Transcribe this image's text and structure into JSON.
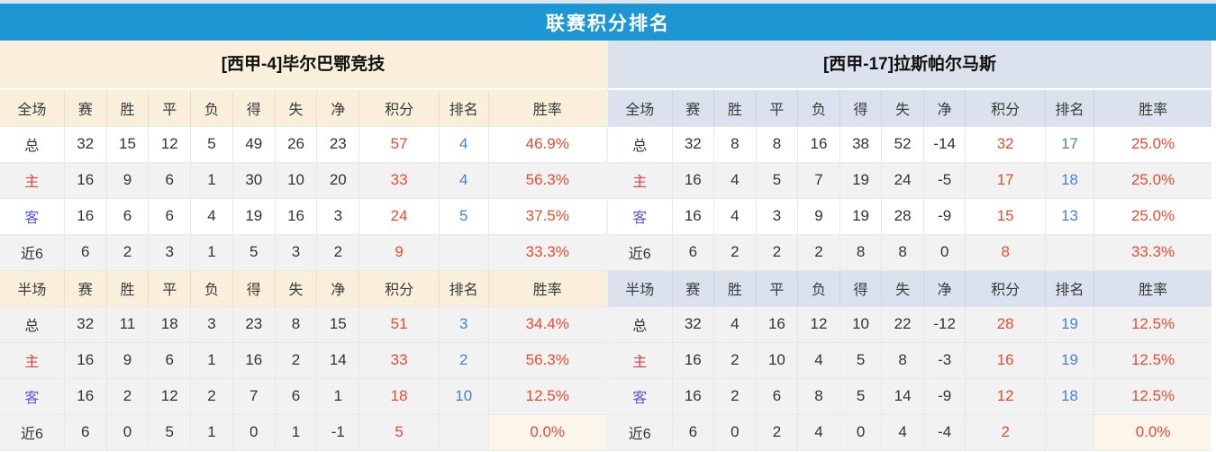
{
  "header": {
    "title": "联赛积分排名"
  },
  "colors": {
    "bar_blue": "#1d97d4",
    "left_accent": "#f9efdb",
    "right_accent": "#dbe2ee",
    "points_red": "#e84c30",
    "rank_blue": "#4183d7",
    "home_label_red": "#dc4040",
    "away_label_blue": "#5a5ad9"
  },
  "columns": [
    "赛",
    "胜",
    "平",
    "负",
    "得",
    "失",
    "净",
    "积分",
    "排名",
    "胜率"
  ],
  "teams": [
    {
      "title": "[西甲-4]毕尔巴鄂竞技",
      "sections": [
        {
          "label": "全场",
          "rows": [
            {
              "label": "总",
              "type": "total",
              "stats": [
                "32",
                "15",
                "12",
                "5",
                "49",
                "26",
                "23"
              ],
              "points": "57",
              "rank": "4",
              "rate": "46.9%"
            },
            {
              "label": "主",
              "type": "home",
              "stats": [
                "16",
                "9",
                "6",
                "1",
                "30",
                "10",
                "20"
              ],
              "points": "33",
              "rank": "4",
              "rate": "56.3%"
            },
            {
              "label": "客",
              "type": "away",
              "stats": [
                "16",
                "6",
                "6",
                "4",
                "19",
                "16",
                "3"
              ],
              "points": "24",
              "rank": "5",
              "rate": "37.5%"
            },
            {
              "label": "近6",
              "type": "last6",
              "stats": [
                "6",
                "2",
                "3",
                "1",
                "5",
                "3",
                "2"
              ],
              "points": "9",
              "rank": "",
              "rate": "33.3%"
            }
          ]
        },
        {
          "label": "半场",
          "rows": [
            {
              "label": "总",
              "type": "total",
              "stats": [
                "32",
                "11",
                "18",
                "3",
                "23",
                "8",
                "15"
              ],
              "points": "51",
              "rank": "3",
              "rate": "34.4%"
            },
            {
              "label": "主",
              "type": "home",
              "stats": [
                "16",
                "9",
                "6",
                "1",
                "16",
                "2",
                "14"
              ],
              "points": "33",
              "rank": "2",
              "rate": "56.3%"
            },
            {
              "label": "客",
              "type": "away",
              "stats": [
                "16",
                "2",
                "12",
                "2",
                "7",
                "6",
                "1"
              ],
              "points": "18",
              "rank": "10",
              "rate": "12.5%"
            },
            {
              "label": "近6",
              "type": "last6",
              "stats": [
                "6",
                "0",
                "5",
                "1",
                "0",
                "1",
                "-1"
              ],
              "points": "5",
              "rank": "",
              "rate": "0.0%"
            }
          ]
        }
      ]
    },
    {
      "title": "[西甲-17]拉斯帕尔马斯",
      "sections": [
        {
          "label": "全场",
          "rows": [
            {
              "label": "总",
              "type": "total",
              "stats": [
                "32",
                "8",
                "8",
                "16",
                "38",
                "52",
                "-14"
              ],
              "points": "32",
              "rank": "17",
              "rate": "25.0%"
            },
            {
              "label": "主",
              "type": "home",
              "stats": [
                "16",
                "4",
                "5",
                "7",
                "19",
                "24",
                "-5"
              ],
              "points": "17",
              "rank": "18",
              "rate": "25.0%"
            },
            {
              "label": "客",
              "type": "away",
              "stats": [
                "16",
                "4",
                "3",
                "9",
                "19",
                "28",
                "-9"
              ],
              "points": "15",
              "rank": "13",
              "rate": "25.0%"
            },
            {
              "label": "近6",
              "type": "last6",
              "stats": [
                "6",
                "2",
                "2",
                "2",
                "8",
                "8",
                "0"
              ],
              "points": "8",
              "rank": "",
              "rate": "33.3%"
            }
          ]
        },
        {
          "label": "半场",
          "rows": [
            {
              "label": "总",
              "type": "total",
              "stats": [
                "32",
                "4",
                "16",
                "12",
                "10",
                "22",
                "-12"
              ],
              "points": "28",
              "rank": "19",
              "rate": "12.5%"
            },
            {
              "label": "主",
              "type": "home",
              "stats": [
                "16",
                "2",
                "10",
                "4",
                "5",
                "8",
                "-3"
              ],
              "points": "16",
              "rank": "19",
              "rate": "12.5%"
            },
            {
              "label": "客",
              "type": "away",
              "stats": [
                "16",
                "2",
                "6",
                "8",
                "5",
                "14",
                "-9"
              ],
              "points": "12",
              "rank": "18",
              "rate": "12.5%"
            },
            {
              "label": "近6",
              "type": "last6",
              "stats": [
                "6",
                "0",
                "2",
                "4",
                "0",
                "4",
                "-4"
              ],
              "points": "2",
              "rank": "",
              "rate": "0.0%"
            }
          ]
        }
      ]
    }
  ]
}
